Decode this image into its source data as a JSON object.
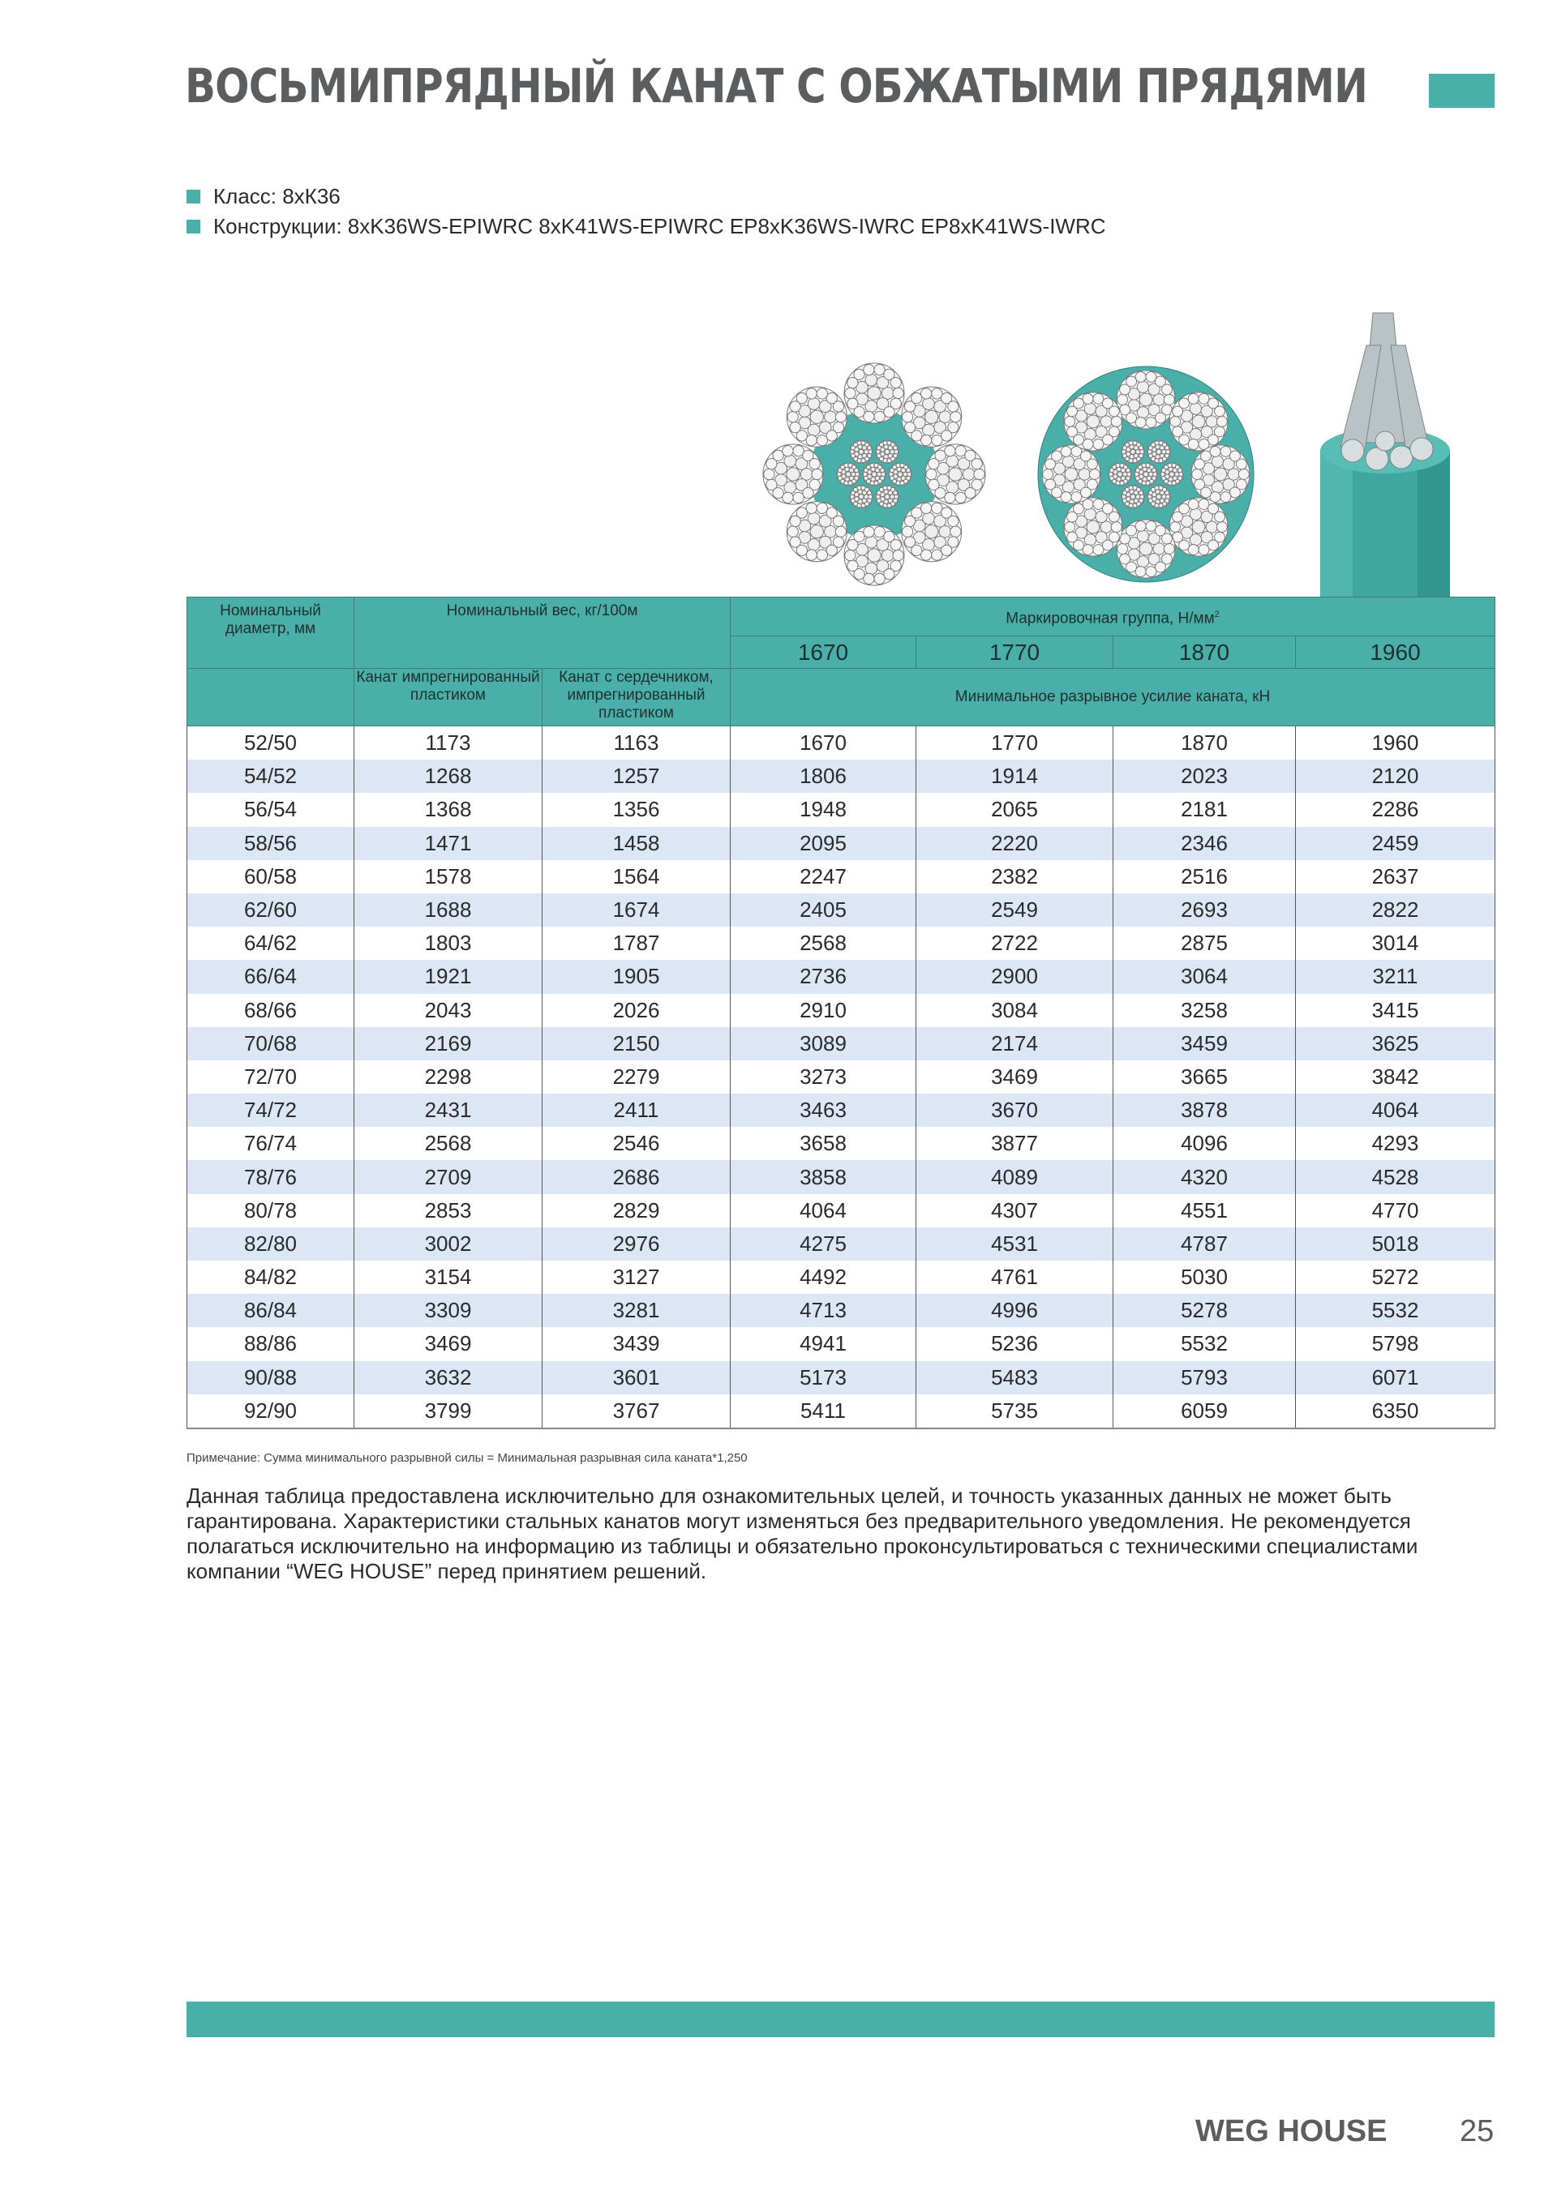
{
  "title": "ВОСЬМИПРЯДНЫЙ КАНАТ С ОБЖАТЫМИ ПРЯДЯМИ",
  "accent_color": "#4aafa8",
  "row_alt_color": "#dde6f4",
  "specs": [
    {
      "label": "Класс: 8хК36"
    },
    {
      "label": "Конструкции:  8xK36WS-EPIWRC 8xK41WS-EPIWRC EP8xK36WS-IWRC EP8xK41WS-IWRC"
    }
  ],
  "table": {
    "header": {
      "diameter": "Номинальный диаметр, мм",
      "weight": "Номинальный вес, кг/100м",
      "grade_group": "Маркировочная группа, Н/мм",
      "grade_sup": "2",
      "grades": [
        "1670",
        "1770",
        "1870",
        "1960"
      ],
      "weight_sub": [
        "Канат импрегнированный пластиком",
        "Канат с сердечником, импрегнированный пластиком"
      ],
      "breaking": "Минимальное разрывное усилие каната, кН"
    },
    "rows": [
      [
        "52/50",
        "1173",
        "1163",
        "1670",
        "1770",
        "1870",
        "1960"
      ],
      [
        "54/52",
        "1268",
        "1257",
        "1806",
        "1914",
        "2023",
        "2120"
      ],
      [
        "56/54",
        "1368",
        "1356",
        "1948",
        "2065",
        "2181",
        "2286"
      ],
      [
        "58/56",
        "1471",
        "1458",
        "2095",
        "2220",
        "2346",
        "2459"
      ],
      [
        "60/58",
        "1578",
        "1564",
        "2247",
        "2382",
        "2516",
        "2637"
      ],
      [
        "62/60",
        "1688",
        "1674",
        "2405",
        "2549",
        "2693",
        "2822"
      ],
      [
        "64/62",
        "1803",
        "1787",
        "2568",
        "2722",
        "2875",
        "3014"
      ],
      [
        "66/64",
        "1921",
        "1905",
        "2736",
        "2900",
        "3064",
        "3211"
      ],
      [
        "68/66",
        "2043",
        "2026",
        "2910",
        "3084",
        "3258",
        "3415"
      ],
      [
        "70/68",
        "2169",
        "2150",
        "3089",
        "2174",
        "3459",
        "3625"
      ],
      [
        "72/70",
        "2298",
        "2279",
        "3273",
        "3469",
        "3665",
        "3842"
      ],
      [
        "74/72",
        "2431",
        "2411",
        "3463",
        "3670",
        "3878",
        "4064"
      ],
      [
        "76/74",
        "2568",
        "2546",
        "3658",
        "3877",
        "4096",
        "4293"
      ],
      [
        "78/76",
        "2709",
        "2686",
        "3858",
        "4089",
        "4320",
        "4528"
      ],
      [
        "80/78",
        "2853",
        "2829",
        "4064",
        "4307",
        "4551",
        "4770"
      ],
      [
        "82/80",
        "3002",
        "2976",
        "4275",
        "4531",
        "4787",
        "5018"
      ],
      [
        "84/82",
        "3154",
        "3127",
        "4492",
        "4761",
        "5030",
        "5272"
      ],
      [
        "86/84",
        "3309",
        "3281",
        "4713",
        "4996",
        "5278",
        "5532"
      ],
      [
        "88/86",
        "3469",
        "3439",
        "4941",
        "5236",
        "5532",
        "5798"
      ],
      [
        "90/88",
        "3632",
        "3601",
        "5173",
        "5483",
        "5793",
        "6071"
      ],
      [
        "92/90",
        "3799",
        "3767",
        "5411",
        "5735",
        "6059",
        "6350"
      ]
    ]
  },
  "note": "Примечание: Сумма минимального разрывной силы = Минимальная разрывная сила каната*1,250",
  "disclaimer": "Данная таблица предоставлена исключительно для  ознакомительных целей, и  точность указанных данных не может быть гарантирована.  Характеристики стальных канатов могут изменяться без предварительного уведомления. Не рекомендуется полагаться исключительно на информацию из таблицы и обязательно проконсультироваться с техническими специалистами компании “WEG HOUSE” перед принятием решений.",
  "footer": {
    "brand": "WEG HOUSE",
    "page": "25"
  }
}
